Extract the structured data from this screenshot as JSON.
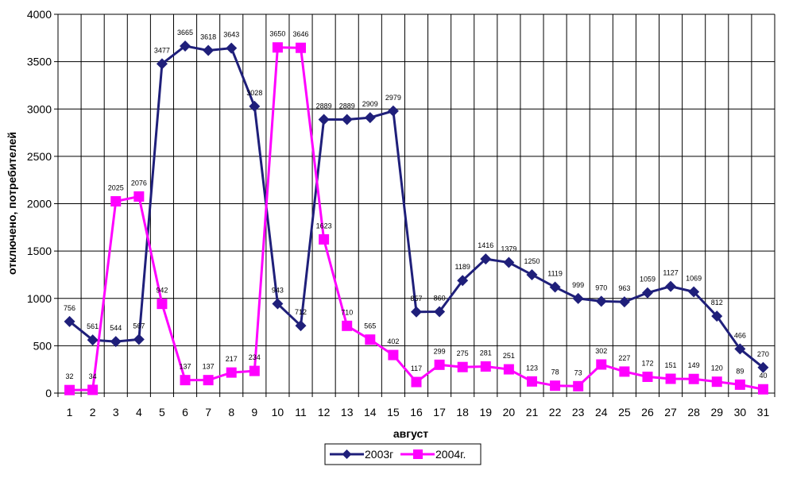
{
  "chart_data": {
    "type": "line",
    "xlabel": "август",
    "ylabel": "отключено, потребителей",
    "ylim": [
      0,
      4000
    ],
    "y_ticks": [
      0,
      500,
      1000,
      1500,
      2000,
      2500,
      3000,
      3500,
      4000
    ],
    "categories": [
      "1",
      "2",
      "3",
      "4",
      "5",
      "6",
      "7",
      "8",
      "9",
      "10",
      "11",
      "12",
      "13",
      "14",
      "15",
      "16",
      "17",
      "18",
      "19",
      "20",
      "21",
      "22",
      "23",
      "24",
      "25",
      "26",
      "27",
      "28",
      "29",
      "30",
      "31"
    ],
    "grid": "on",
    "legend_position": "bottom",
    "series": [
      {
        "name": "2003г",
        "color": "#1f1f7a",
        "marker": "diamond",
        "values": [
          756,
          561,
          544,
          567,
          3477,
          3665,
          3618,
          3643,
          3028,
          943,
          712,
          2889,
          2889,
          2909,
          2979,
          857,
          860,
          1189,
          1416,
          1379,
          1250,
          1119,
          999,
          970,
          963,
          1059,
          1127,
          1069,
          812,
          466,
          270
        ]
      },
      {
        "name": "2004г.",
        "color": "#ff00ff",
        "marker": "square",
        "values": [
          32,
          34,
          2025,
          2076,
          942,
          137,
          137,
          217,
          234,
          3650,
          3646,
          1623,
          710,
          565,
          402,
          117,
          299,
          275,
          281,
          251,
          123,
          78,
          73,
          302,
          227,
          172,
          151,
          149,
          120,
          89,
          40
        ]
      }
    ]
  }
}
